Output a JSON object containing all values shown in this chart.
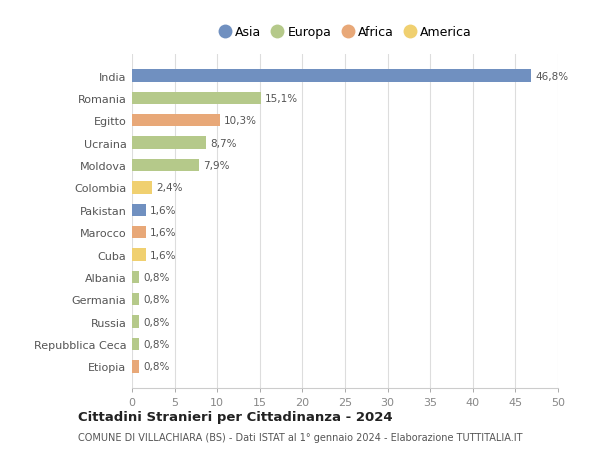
{
  "countries": [
    "India",
    "Romania",
    "Egitto",
    "Ucraina",
    "Moldova",
    "Colombia",
    "Pakistan",
    "Marocco",
    "Cuba",
    "Albania",
    "Germania",
    "Russia",
    "Repubblica Ceca",
    "Etiopia"
  ],
  "values": [
    46.8,
    15.1,
    10.3,
    8.7,
    7.9,
    2.4,
    1.6,
    1.6,
    1.6,
    0.8,
    0.8,
    0.8,
    0.8,
    0.8
  ],
  "labels": [
    "46,8%",
    "15,1%",
    "10,3%",
    "8,7%",
    "7,9%",
    "2,4%",
    "1,6%",
    "1,6%",
    "1,6%",
    "0,8%",
    "0,8%",
    "0,8%",
    "0,8%",
    "0,8%"
  ],
  "continents": [
    "Asia",
    "Europa",
    "Africa",
    "Europa",
    "Europa",
    "America",
    "Asia",
    "Africa",
    "America",
    "Europa",
    "Europa",
    "Europa",
    "Europa",
    "Africa"
  ],
  "colors": {
    "Asia": "#7090c0",
    "Europa": "#b5c98a",
    "Africa": "#e8a878",
    "America": "#f0d070"
  },
  "title": "Cittadini Stranieri per Cittadinanza - 2024",
  "subtitle": "COMUNE DI VILLACHIARA (BS) - Dati ISTAT al 1° gennaio 2024 - Elaborazione TUTTITALIA.IT",
  "xlim": [
    0,
    50
  ],
  "xticks": [
    0,
    5,
    10,
    15,
    20,
    25,
    30,
    35,
    40,
    45,
    50
  ],
  "background_color": "#ffffff",
  "grid_color": "#dddddd",
  "bar_height": 0.55
}
